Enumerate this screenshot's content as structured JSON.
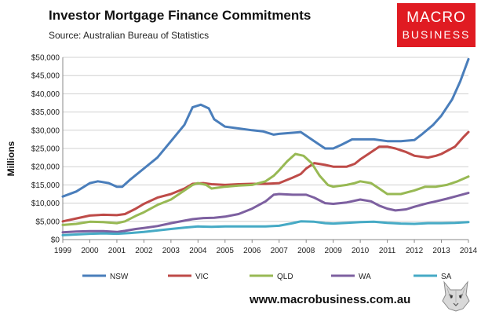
{
  "header": {
    "title": "Investor Mortgage Finance Commitments",
    "subtitle": "Source: Australian Bureau of Statistics"
  },
  "logo": {
    "line1": "MACRO",
    "line2": "BUSINESS"
  },
  "footer": {
    "url": "www.macrobusiness.com.au"
  },
  "colors": {
    "NSW": "#4a7ebb",
    "VIC": "#be4b48",
    "QLD": "#98b954",
    "WA": "#7d60a0",
    "SA": "#46aac5",
    "logo_bg": "#e01b22"
  },
  "chart_data": {
    "type": "line",
    "title": "Investor Mortgage Finance Commitments",
    "ylabel": "Millions",
    "xlabel": "",
    "xlim": [
      1999,
      2014
    ],
    "ylim": [
      0,
      50000
    ],
    "x_ticks": [
      "1999",
      "2000",
      "2001",
      "2002",
      "2003",
      "2004",
      "2005",
      "2006",
      "2007",
      "2008",
      "2009",
      "2010",
      "2011",
      "2012",
      "2013",
      "2014"
    ],
    "y_ticks": [
      "$0",
      "$5,000",
      "$10,000",
      "$15,000",
      "$20,000",
      "$25,000",
      "$30,000",
      "$35,000",
      "$40,000",
      "$45,000",
      "$50,000"
    ],
    "y_tick_values": [
      0,
      5000,
      10000,
      15000,
      20000,
      25000,
      30000,
      35000,
      40000,
      45000,
      50000
    ],
    "grid": "horizontal",
    "legend_position": "bottom",
    "series": [
      {
        "name": "NSW",
        "points": [
          [
            1999.0,
            11800
          ],
          [
            1999.5,
            13200
          ],
          [
            2000.0,
            15500
          ],
          [
            2000.3,
            16000
          ],
          [
            2000.7,
            15500
          ],
          [
            2001.0,
            14500
          ],
          [
            2001.2,
            14500
          ],
          [
            2001.5,
            16500
          ],
          [
            2002.0,
            19500
          ],
          [
            2002.5,
            22500
          ],
          [
            2003.0,
            27000
          ],
          [
            2003.5,
            31500
          ],
          [
            2003.8,
            36300
          ],
          [
            2004.1,
            37000
          ],
          [
            2004.4,
            36000
          ],
          [
            2004.6,
            33000
          ],
          [
            2005.0,
            31000
          ],
          [
            2005.5,
            30500
          ],
          [
            2006.0,
            30000
          ],
          [
            2006.4,
            29700
          ],
          [
            2006.8,
            28800
          ],
          [
            2007.0,
            29000
          ],
          [
            2007.5,
            29300
          ],
          [
            2007.8,
            29500
          ],
          [
            2008.0,
            28500
          ],
          [
            2008.3,
            27000
          ],
          [
            2008.7,
            25000
          ],
          [
            2009.0,
            25000
          ],
          [
            2009.3,
            26000
          ],
          [
            2009.7,
            27500
          ],
          [
            2010.0,
            27500
          ],
          [
            2010.5,
            27500
          ],
          [
            2011.0,
            27000
          ],
          [
            2011.5,
            27000
          ],
          [
            2012.0,
            27300
          ],
          [
            2012.3,
            29000
          ],
          [
            2012.7,
            31500
          ],
          [
            2013.0,
            34000
          ],
          [
            2013.4,
            38500
          ],
          [
            2013.7,
            43500
          ],
          [
            2014.0,
            49500
          ]
        ]
      },
      {
        "name": "VIC",
        "points": [
          [
            1999.0,
            5000
          ],
          [
            1999.5,
            5800
          ],
          [
            2000.0,
            6600
          ],
          [
            2000.5,
            6800
          ],
          [
            2001.0,
            6700
          ],
          [
            2001.3,
            7000
          ],
          [
            2001.7,
            8500
          ],
          [
            2002.0,
            9800
          ],
          [
            2002.5,
            11500
          ],
          [
            2003.0,
            12500
          ],
          [
            2003.5,
            14000
          ],
          [
            2003.8,
            15300
          ],
          [
            2004.2,
            15500
          ],
          [
            2004.5,
            15200
          ],
          [
            2005.0,
            15000
          ],
          [
            2005.5,
            15200
          ],
          [
            2006.0,
            15300
          ],
          [
            2006.5,
            15300
          ],
          [
            2007.0,
            15500
          ],
          [
            2007.5,
            17000
          ],
          [
            2007.8,
            18000
          ],
          [
            2008.0,
            19500
          ],
          [
            2008.3,
            21000
          ],
          [
            2008.7,
            20500
          ],
          [
            2009.0,
            20000
          ],
          [
            2009.5,
            20000
          ],
          [
            2009.8,
            20800
          ],
          [
            2010.0,
            22000
          ],
          [
            2010.3,
            23500
          ],
          [
            2010.7,
            25500
          ],
          [
            2011.0,
            25500
          ],
          [
            2011.3,
            25000
          ],
          [
            2011.7,
            24000
          ],
          [
            2012.0,
            23000
          ],
          [
            2012.5,
            22500
          ],
          [
            2012.8,
            23000
          ],
          [
            2013.0,
            23500
          ],
          [
            2013.5,
            25500
          ],
          [
            2013.8,
            28000
          ],
          [
            2014.0,
            29500
          ]
        ]
      },
      {
        "name": "QLD",
        "points": [
          [
            1999.0,
            4000
          ],
          [
            1999.5,
            4300
          ],
          [
            2000.0,
            4900
          ],
          [
            2000.5,
            4800
          ],
          [
            2001.0,
            4500
          ],
          [
            2001.3,
            5000
          ],
          [
            2001.7,
            6500
          ],
          [
            2002.0,
            7500
          ],
          [
            2002.5,
            9500
          ],
          [
            2003.0,
            11000
          ],
          [
            2003.5,
            13500
          ],
          [
            2003.8,
            15000
          ],
          [
            2004.0,
            15500
          ],
          [
            2004.3,
            15000
          ],
          [
            2004.5,
            14000
          ],
          [
            2005.0,
            14500
          ],
          [
            2005.5,
            14800
          ],
          [
            2006.0,
            15000
          ],
          [
            2006.5,
            16000
          ],
          [
            2006.8,
            17500
          ],
          [
            2007.0,
            19000
          ],
          [
            2007.3,
            21500
          ],
          [
            2007.6,
            23500
          ],
          [
            2007.9,
            23000
          ],
          [
            2008.2,
            21000
          ],
          [
            2008.5,
            17500
          ],
          [
            2008.8,
            15000
          ],
          [
            2009.0,
            14500
          ],
          [
            2009.5,
            15000
          ],
          [
            2009.8,
            15500
          ],
          [
            2010.0,
            16000
          ],
          [
            2010.4,
            15500
          ],
          [
            2010.7,
            14000
          ],
          [
            2011.0,
            12500
          ],
          [
            2011.5,
            12500
          ],
          [
            2012.0,
            13500
          ],
          [
            2012.4,
            14500
          ],
          [
            2012.8,
            14500
          ],
          [
            2013.2,
            15000
          ],
          [
            2013.6,
            16000
          ],
          [
            2014.0,
            17300
          ]
        ]
      },
      {
        "name": "WA",
        "points": [
          [
            1999.0,
            2000
          ],
          [
            1999.5,
            2200
          ],
          [
            2000.0,
            2300
          ],
          [
            2000.5,
            2300
          ],
          [
            2001.0,
            2100
          ],
          [
            2001.3,
            2400
          ],
          [
            2001.7,
            2900
          ],
          [
            2002.0,
            3200
          ],
          [
            2002.5,
            3700
          ],
          [
            2003.0,
            4500
          ],
          [
            2003.5,
            5200
          ],
          [
            2003.8,
            5600
          ],
          [
            2004.2,
            5900
          ],
          [
            2004.6,
            6000
          ],
          [
            2005.0,
            6300
          ],
          [
            2005.5,
            7000
          ],
          [
            2006.0,
            8500
          ],
          [
            2006.5,
            10500
          ],
          [
            2006.8,
            12300
          ],
          [
            2007.0,
            12500
          ],
          [
            2007.5,
            12300
          ],
          [
            2008.0,
            12300
          ],
          [
            2008.3,
            11500
          ],
          [
            2008.7,
            10000
          ],
          [
            2009.0,
            9800
          ],
          [
            2009.5,
            10200
          ],
          [
            2010.0,
            11000
          ],
          [
            2010.4,
            10500
          ],
          [
            2010.7,
            9300
          ],
          [
            2011.0,
            8500
          ],
          [
            2011.3,
            8000
          ],
          [
            2011.7,
            8300
          ],
          [
            2012.0,
            9000
          ],
          [
            2012.5,
            10000
          ],
          [
            2012.8,
            10500
          ],
          [
            2013.2,
            11200
          ],
          [
            2013.6,
            12000
          ],
          [
            2014.0,
            12800
          ]
        ]
      },
      {
        "name": "SA",
        "points": [
          [
            1999.0,
            1200
          ],
          [
            1999.5,
            1400
          ],
          [
            2000.0,
            1600
          ],
          [
            2000.5,
            1700
          ],
          [
            2001.0,
            1600
          ],
          [
            2001.5,
            1800
          ],
          [
            2002.0,
            2100
          ],
          [
            2002.5,
            2500
          ],
          [
            2003.0,
            2900
          ],
          [
            2003.5,
            3300
          ],
          [
            2004.0,
            3600
          ],
          [
            2004.5,
            3500
          ],
          [
            2005.0,
            3600
          ],
          [
            2005.5,
            3600
          ],
          [
            2006.0,
            3600
          ],
          [
            2006.5,
            3600
          ],
          [
            2007.0,
            3800
          ],
          [
            2007.5,
            4500
          ],
          [
            2007.8,
            5000
          ],
          [
            2008.3,
            4900
          ],
          [
            2008.7,
            4500
          ],
          [
            2009.0,
            4400
          ],
          [
            2009.5,
            4600
          ],
          [
            2010.0,
            4800
          ],
          [
            2010.5,
            4900
          ],
          [
            2011.0,
            4600
          ],
          [
            2011.5,
            4400
          ],
          [
            2012.0,
            4300
          ],
          [
            2012.5,
            4500
          ],
          [
            2013.0,
            4500
          ],
          [
            2013.5,
            4600
          ],
          [
            2014.0,
            4800
          ]
        ]
      }
    ]
  }
}
